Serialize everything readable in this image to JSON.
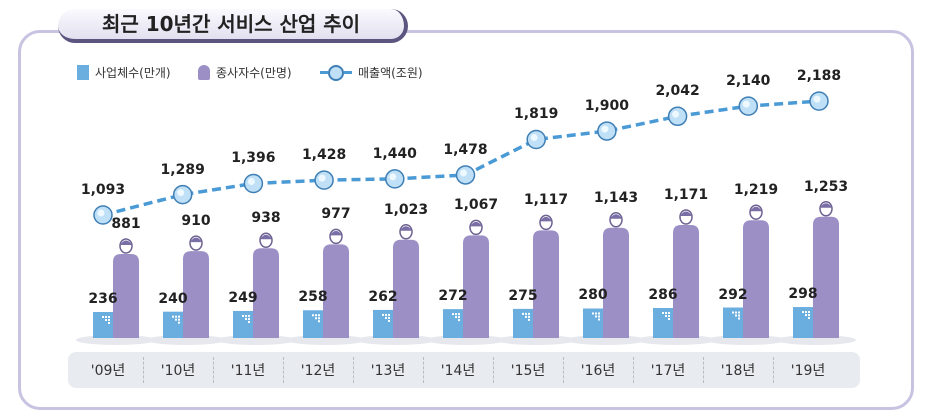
{
  "title": "최근 10년간 서비스 산업 추이",
  "chart_data": {
    "type": "bar",
    "title": "최근 10년간 서비스 산업 추이",
    "categories": [
      "'09년",
      "'10년",
      "'11년",
      "'12년",
      "'13년",
      "'14년",
      "'15년",
      "'16년",
      "'17년",
      "'18년",
      "'19년"
    ],
    "series": [
      {
        "name": "사업체수(만개)",
        "type": "bar",
        "values": [
          236,
          240,
          249,
          258,
          262,
          272,
          275,
          280,
          286,
          292,
          298
        ],
        "labels": [
          "236",
          "240",
          "249",
          "258",
          "262",
          "272",
          "275",
          "280",
          "286",
          "292",
          "298"
        ]
      },
      {
        "name": "종사자수(만명)",
        "type": "bar",
        "values": [
          881,
          910,
          938,
          977,
          1023,
          1067,
          1117,
          1143,
          1171,
          1219,
          1253
        ],
        "labels": [
          "881",
          "910",
          "938",
          "977",
          "1,023",
          "1,067",
          "1,117",
          "1,143",
          "1,171",
          "1,219",
          "1,253"
        ]
      },
      {
        "name": "매출액(조원)",
        "type": "line",
        "values": [
          1093,
          1289,
          1396,
          1428,
          1440,
          1478,
          1819,
          1900,
          2042,
          2140,
          2188
        ],
        "labels": [
          "1,093",
          "1,289",
          "1,396",
          "1,428",
          "1,440",
          "1,478",
          "1,819",
          "1,900",
          "2,042",
          "2,140",
          "2,188"
        ]
      }
    ],
    "legend": "top-left",
    "colors": {
      "building": "#6aaee0",
      "person": "#9b8fc6",
      "line": "#4a9ad6"
    }
  }
}
